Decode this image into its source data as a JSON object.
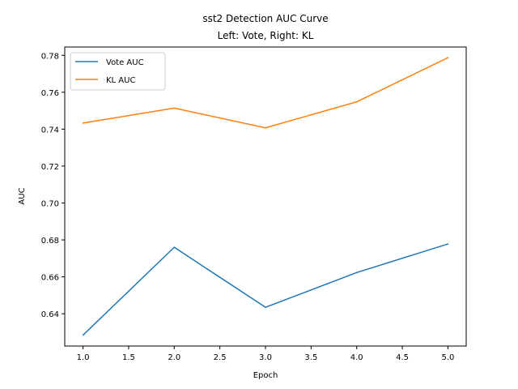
{
  "chart_data": {
    "type": "line",
    "title": "sst2 Detection AUC Curve",
    "subtitle": "Left: Vote, Right: KL",
    "xlabel": "Epoch",
    "ylabel": "AUC",
    "xlim": [
      0.8,
      5.2
    ],
    "ylim": [
      0.6225,
      0.7845
    ],
    "x_ticks": [
      1.0,
      1.5,
      2.0,
      2.5,
      3.0,
      3.5,
      4.0,
      4.5,
      5.0
    ],
    "x_tick_labels": [
      "1.0",
      "1.5",
      "2.0",
      "2.5",
      "3.0",
      "3.5",
      "4.0",
      "4.5",
      "5.0"
    ],
    "y_ticks": [
      0.64,
      0.66,
      0.68,
      0.7,
      0.72,
      0.74,
      0.76,
      0.78
    ],
    "y_tick_labels": [
      "0.64",
      "0.66",
      "0.68",
      "0.70",
      "0.72",
      "0.74",
      "0.76",
      "0.78"
    ],
    "grid": false,
    "legend_position": "upper-left",
    "x": [
      1,
      2,
      3,
      4,
      5
    ],
    "series": [
      {
        "name": "Vote AUC",
        "color": "#1f77b4",
        "values": [
          0.6284,
          0.676,
          0.6435,
          0.6623,
          0.6778
        ]
      },
      {
        "name": "KL AUC",
        "color": "#ff7f0e",
        "values": [
          0.7433,
          0.7514,
          0.7407,
          0.7548,
          0.7787
        ]
      }
    ]
  }
}
